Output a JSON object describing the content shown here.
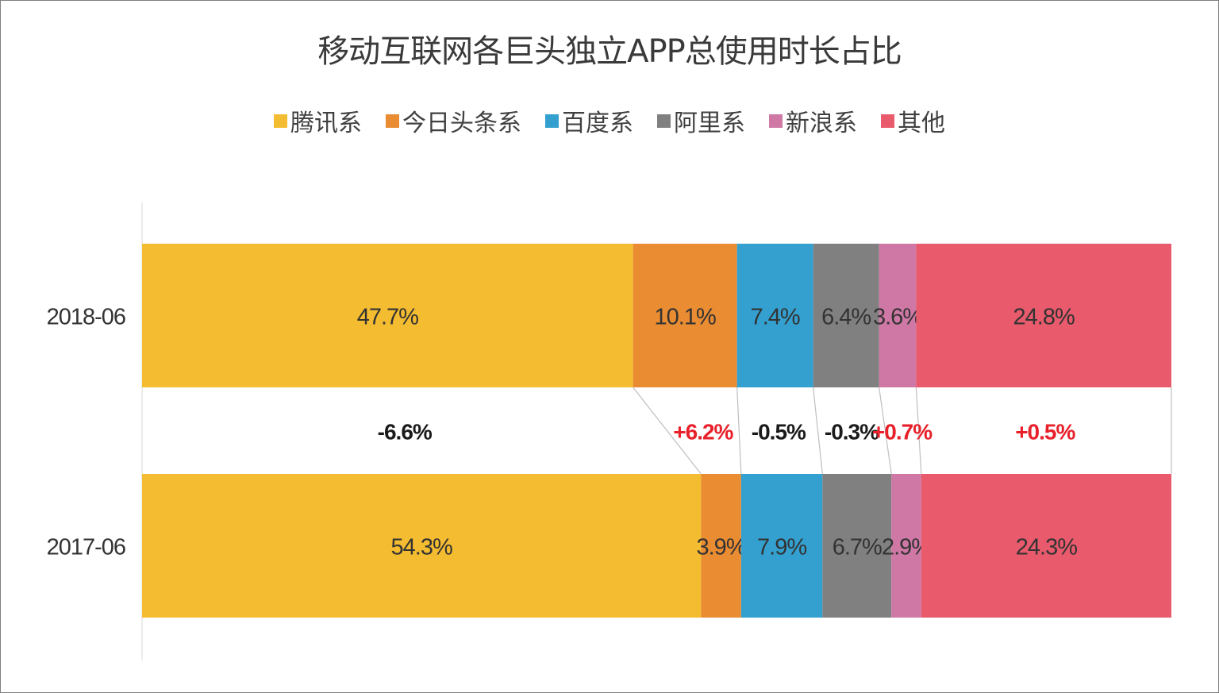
{
  "chart_data": {
    "type": "bar",
    "orientation": "horizontal",
    "stacked": true,
    "title": "移动互联网各巨头独立APP总使用时长占比",
    "legend_position": "top",
    "categories": [
      "2018-06",
      "2017-06"
    ],
    "series": [
      {
        "name": "腾讯系",
        "color": "#F4BC30",
        "values": [
          47.7,
          54.3
        ],
        "labels": [
          "47.7%",
          "54.3%"
        ],
        "change": "-6.6%",
        "change_color": "#1a1a1a"
      },
      {
        "name": "今日头条系",
        "color": "#EA8C31",
        "values": [
          10.1,
          3.9
        ],
        "labels": [
          "10.1%",
          "3.9%"
        ],
        "change": "+6.2%",
        "change_color": "#E8202A"
      },
      {
        "name": "百度系",
        "color": "#33A0D0",
        "values": [
          7.4,
          7.9
        ],
        "labels": [
          "7.4%",
          "7.9%"
        ],
        "change": "-0.5%",
        "change_color": "#1a1a1a"
      },
      {
        "name": "阿里系",
        "color": "#808080",
        "values": [
          6.4,
          6.7
        ],
        "labels": [
          "6.4%",
          "6.7%"
        ],
        "change": "-0.3%",
        "change_color": "#1a1a1a"
      },
      {
        "name": "新浪系",
        "color": "#CF78A5",
        "values": [
          3.6,
          2.9
        ],
        "labels": [
          "3.6%",
          "2.9%"
        ],
        "change": "+0.7%",
        "change_color": "#E8202A"
      },
      {
        "name": "其他",
        "color": "#E85A6C",
        "values": [
          24.8,
          24.3
        ],
        "labels": [
          "24.8%",
          "24.3%"
        ],
        "change": "+0.5%",
        "change_color": "#E8202A"
      }
    ]
  }
}
